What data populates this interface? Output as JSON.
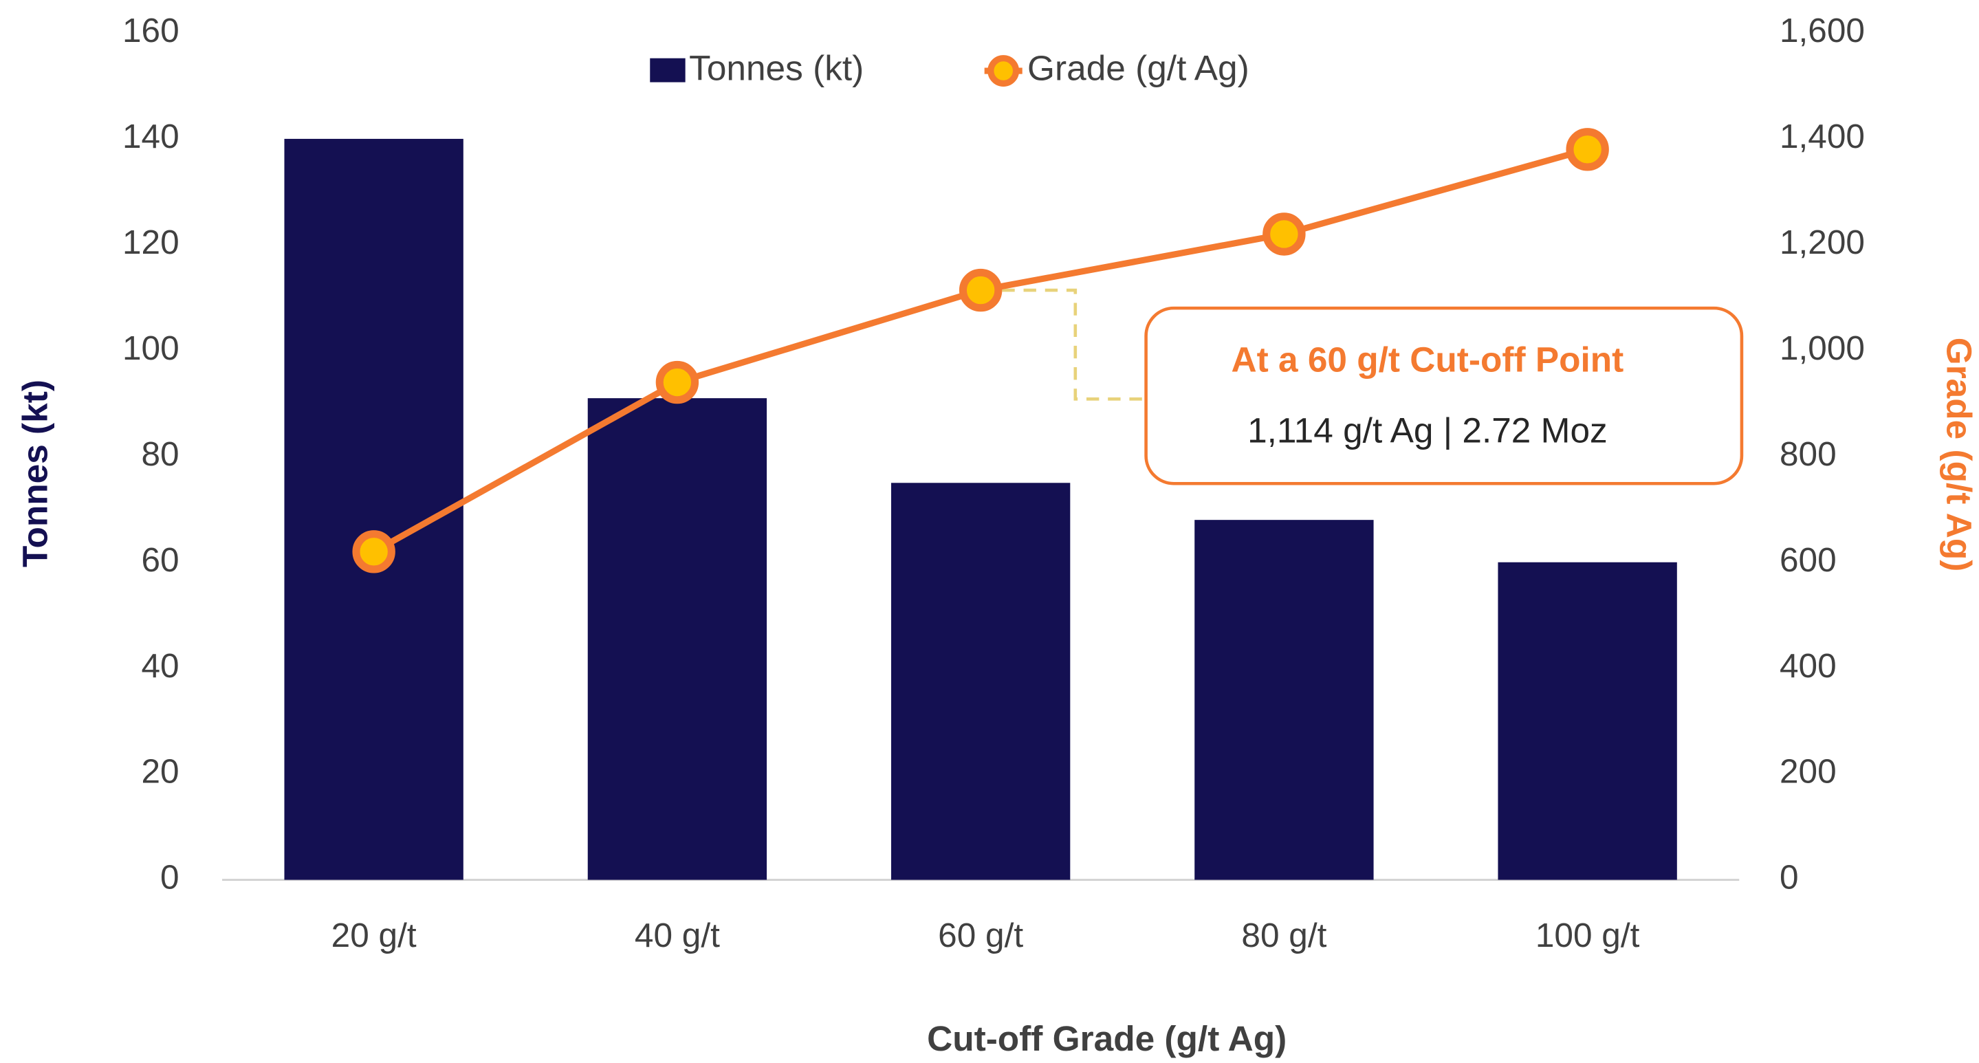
{
  "chart_data": {
    "type": "bar",
    "categories": [
      "20 g/t",
      "40 g/t",
      "60 g/t",
      "80 g/t",
      "100 g/t"
    ],
    "series": [
      {
        "name": "Tonnes (kt)",
        "type": "bar",
        "color": "#141052",
        "values": [
          140,
          91,
          75,
          68,
          60
        ]
      },
      {
        "name": "Grade (g/t Ag)",
        "type": "line",
        "axis": "y2",
        "color": "#f47a30",
        "marker_color": "#ffc000",
        "values": [
          620,
          940,
          1114,
          1220,
          1380
        ]
      }
    ],
    "ylabel": "Tonnes (kt)",
    "y2label": "Grade (g/t Ag)",
    "xlabel": "Cut-off Grade (g/t Ag)",
    "ylim": [
      0,
      160
    ],
    "yticks": [
      0,
      20,
      40,
      60,
      80,
      100,
      120,
      140,
      160
    ],
    "y2lim": [
      0,
      1600
    ],
    "y2ticks": [
      0,
      200,
      400,
      600,
      800,
      {
        "value": 1000,
        "label": "1,000"
      },
      {
        "value": 1200,
        "label": "1,200"
      },
      {
        "value": 1400,
        "label": "1,400"
      },
      {
        "value": 1600,
        "label": "1,600"
      }
    ],
    "legend": "top",
    "grid": false,
    "annotation": {
      "title": "At a 60 g/t Cut-off Point",
      "text": "1,114 g/t Ag | 2.72 Moz",
      "category": 2
    }
  }
}
